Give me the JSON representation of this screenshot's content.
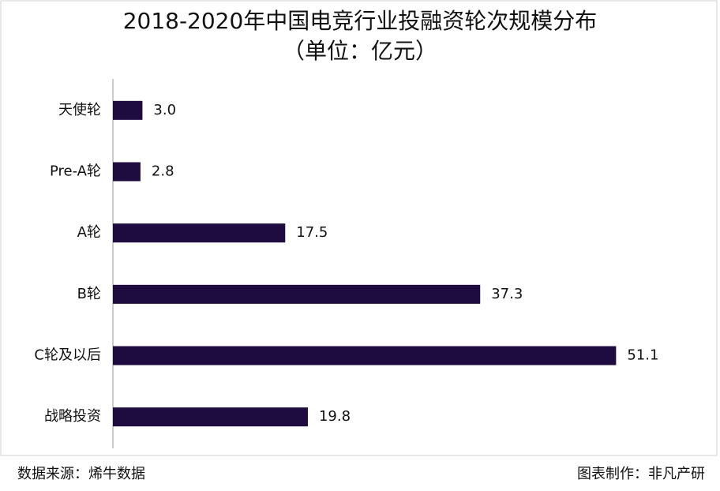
{
  "chart_data": {
    "type": "bar",
    "orientation": "horizontal",
    "title": "2018-2020年中国电竞行业投融资轮次规模分布",
    "subtitle": "（单位：亿元）",
    "categories": [
      "天使轮",
      "Pre-A轮",
      "A轮",
      "B轮",
      "C轮及以后",
      "战略投资"
    ],
    "values": [
      3,
      2.8,
      17.5,
      37.3,
      51.1,
      19.8
    ],
    "value_labels": [
      "3.0",
      "2.8",
      "17.5",
      "37.3",
      "51.1",
      "19.8"
    ],
    "color": "#1e0b40",
    "xlim": [
      0,
      55
    ],
    "source": "数据来源：烯牛数据",
    "credit": "图表制作：非凡产研"
  }
}
